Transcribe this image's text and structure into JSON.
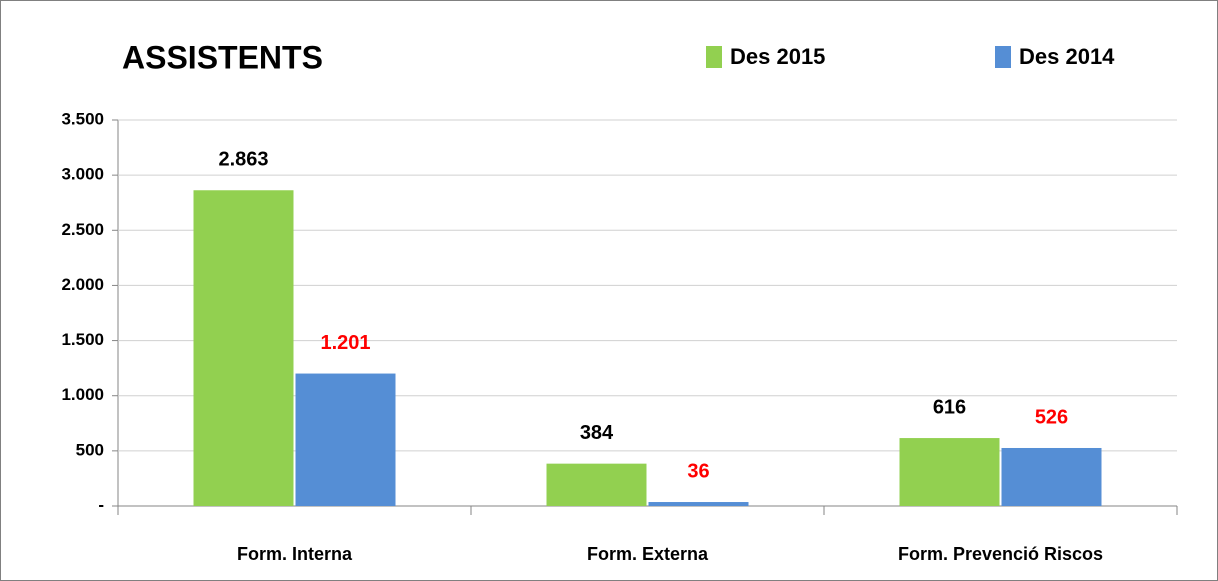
{
  "chart_data": {
    "type": "bar",
    "title": "ASSISTENTS",
    "categories": [
      "Form. Interna",
      "Form. Externa",
      "Form. Prevenció Riscos"
    ],
    "series": [
      {
        "name": "Des 2015",
        "color": "#92d050",
        "label_color": "#000000",
        "values": [
          2863,
          384,
          616
        ],
        "value_labels": [
          "2.863",
          "384",
          "616"
        ]
      },
      {
        "name": "Des 2014",
        "color": "#558ed5",
        "label_color": "#ff0000",
        "values": [
          1201,
          36,
          526
        ],
        "value_labels": [
          "1.201",
          "36",
          "526"
        ]
      }
    ],
    "ylim": [
      0,
      3500
    ],
    "yticks": [
      {
        "value": 0,
        "label": "-"
      },
      500,
      {
        "value": 1000,
        "label": "1.000"
      },
      {
        "value": 1500,
        "label": "1.500"
      },
      {
        "value": 2000,
        "label": "2.000"
      },
      {
        "value": 2500,
        "label": "2.500"
      },
      {
        "value": 3000,
        "label": "3.000"
      },
      {
        "value": 3500,
        "label": "3.500"
      }
    ],
    "grid": true,
    "legend": "top"
  }
}
